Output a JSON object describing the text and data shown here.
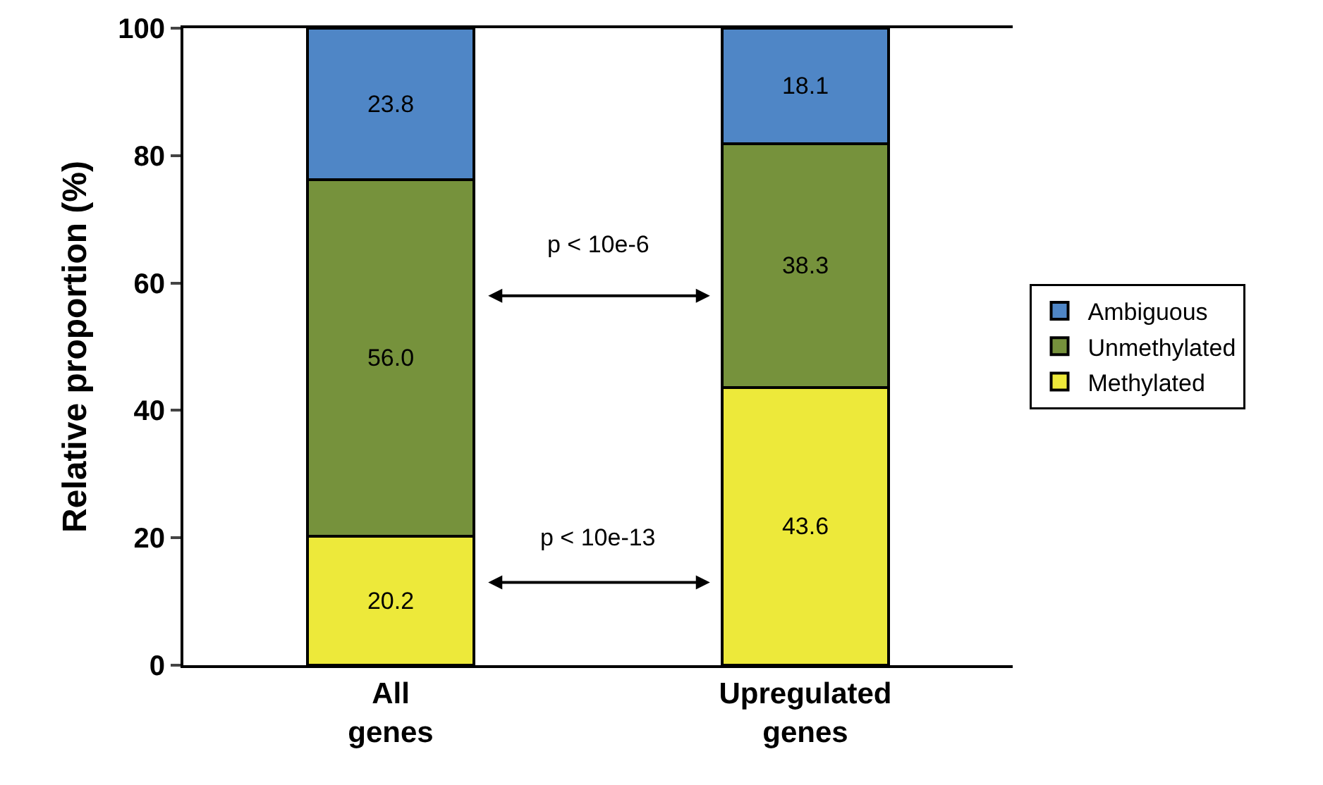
{
  "chart_data": {
    "type": "bar",
    "stacked": true,
    "ylabel": "Relative proportion (%)",
    "categories": [
      "All genes",
      "Upregulated genes"
    ],
    "series": [
      {
        "name": "Methylated",
        "color": "#ede93a",
        "values": [
          20.2,
          43.6
        ],
        "value_labels": [
          "20.2",
          "43.6"
        ]
      },
      {
        "name": "Unmethylated",
        "color": "#76923c",
        "values": [
          56.0,
          38.3
        ],
        "value_labels": [
          "56.0",
          "38.3"
        ]
      },
      {
        "name": "Ambiguous",
        "color": "#4f86c6",
        "values": [
          23.8,
          18.1
        ],
        "value_labels": [
          "23.8",
          "18.1"
        ]
      }
    ],
    "ylim": [
      0,
      100
    ],
    "yticks": [
      0,
      20,
      40,
      60,
      80,
      100
    ],
    "grid": false,
    "legend": "right",
    "annotations": [
      "p < 10e-6",
      "p < 10e-13"
    ]
  }
}
